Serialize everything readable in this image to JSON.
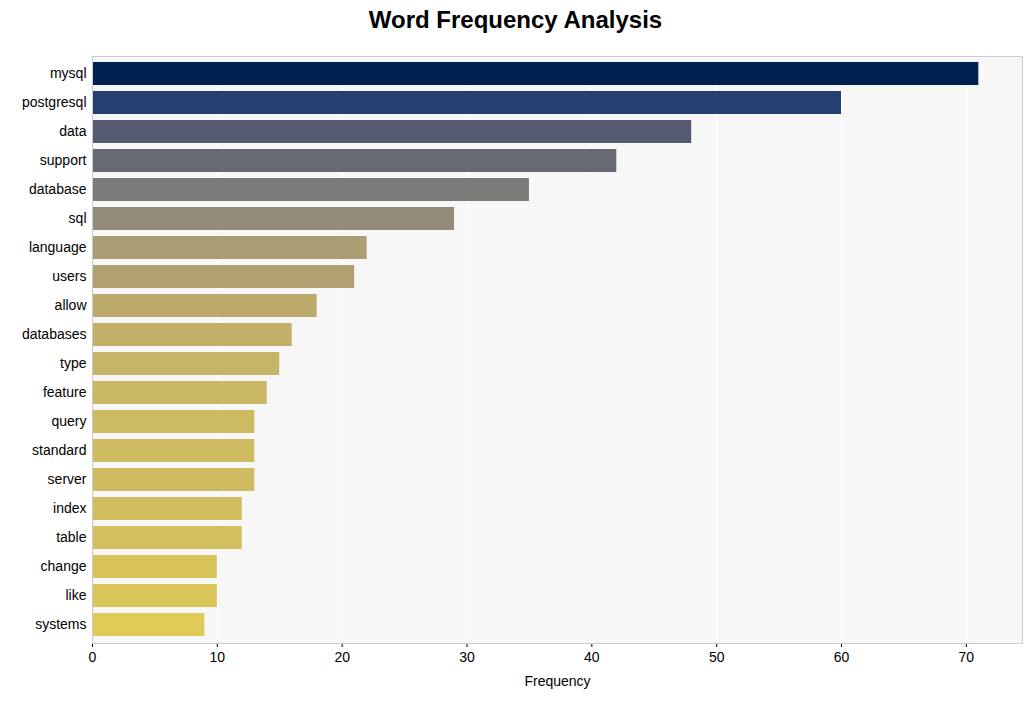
{
  "chart_data": {
    "type": "bar",
    "orientation": "horizontal",
    "title": "Word Frequency Analysis",
    "x_label": "Frequency",
    "categories": [
      "mysql",
      "postgresql",
      "data",
      "support",
      "database",
      "sql",
      "language",
      "users",
      "allow",
      "databases",
      "type",
      "feature",
      "query",
      "standard",
      "server",
      "index",
      "table",
      "change",
      "like",
      "systems"
    ],
    "values": [
      71,
      60,
      48,
      42,
      35,
      29,
      22,
      21,
      18,
      16,
      15,
      14,
      13,
      13,
      13,
      12,
      12,
      10,
      10,
      9
    ],
    "colors": [
      "#00204f",
      "#253f73",
      "#575a73",
      "#676a72",
      "#7d7b78",
      "#948c78",
      "#ab9e74",
      "#b0a070",
      "#bcaa6c",
      "#c2b06a",
      "#c6b467",
      "#cab865",
      "#cdbb62",
      "#cebb62",
      "#cfbc60",
      "#d2be5e",
      "#d3bf5d",
      "#d9c45a",
      "#dac55a",
      "#e0ca57"
    ],
    "xlim": [
      0,
      74.5
    ],
    "xticks": [
      0,
      10,
      20,
      30,
      40,
      50,
      60,
      70
    ],
    "grid": true
  }
}
